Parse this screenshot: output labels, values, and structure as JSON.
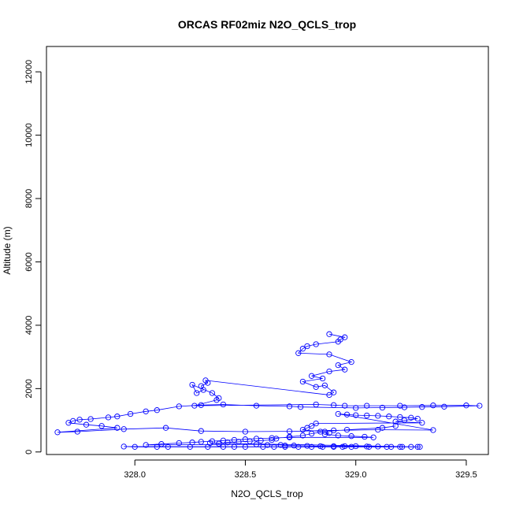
{
  "chart_data": {
    "type": "scatter",
    "title": "ORCAS RF02miz N2O_QCLS_trop",
    "xlabel": "N2O_QCLS_trop",
    "ylabel": "Altitude (m)",
    "xlim": [
      327.6,
      329.6
    ],
    "ylim": [
      -80,
      12800
    ],
    "xticks": [
      328.0,
      328.5,
      329.0,
      329.5
    ],
    "xtick_labels": [
      "328.0",
      "328.5",
      "329.0",
      "329.5"
    ],
    "yticks": [
      0,
      2000,
      4000,
      6000,
      8000,
      10000,
      12000
    ],
    "ytick_labels": [
      "0",
      "2000",
      "4000",
      "6000",
      "8000",
      "10000",
      "12000"
    ],
    "grid": false,
    "legend": "none",
    "colors": {
      "series": "#0000ff",
      "axes": "#000000"
    },
    "series": [
      {
        "mode": "lines+markers",
        "x": [
          328.88,
          328.95,
          328.93,
          328.92,
          328.82,
          328.78,
          328.76,
          328.74,
          328.88,
          328.98,
          328.92,
          328.95,
          328.88,
          328.8,
          328.85,
          328.76,
          328.82,
          328.86,
          328.9,
          328.88,
          328.32,
          328.33,
          328.3,
          328.31,
          328.28,
          328.26,
          328.35,
          328.38,
          328.37,
          328.27,
          328.82,
          328.9,
          328.95,
          329.05,
          329.2,
          329.35,
          329.5,
          329.56,
          329.4,
          329.3,
          329.22,
          329.12,
          329.0,
          328.75,
          328.7,
          328.55,
          328.4,
          328.3,
          328.2,
          328.1,
          328.05,
          327.98,
          327.92,
          327.88,
          327.8,
          327.75,
          327.72,
          327.7,
          327.78,
          327.85,
          327.92,
          327.65,
          327.74,
          327.95,
          328.14,
          328.3,
          328.5,
          328.7,
          328.9,
          329.1,
          329.35,
          328.92,
          328.96,
          329.0,
          329.05,
          329.1,
          329.15,
          329.2,
          329.25,
          329.28,
          329.22,
          329.18,
          329.3,
          328.82,
          328.8,
          328.78,
          328.76,
          328.84,
          328.88,
          328.86,
          328.92,
          328.98,
          329.04,
          329.08,
          328.7,
          328.62,
          328.55,
          328.5,
          328.45,
          328.4,
          328.35,
          328.3,
          328.26,
          328.2,
          328.12,
          328.05,
          328.55,
          328.6,
          328.66,
          328.68,
          328.72,
          328.78,
          328.84,
          328.9,
          328.95,
          329.0,
          329.05,
          329.1,
          329.16,
          329.2,
          329.25,
          329.29,
          327.95,
          328.0,
          328.1,
          328.15,
          328.25,
          328.33,
          328.4,
          328.45,
          328.5,
          328.58,
          328.63,
          328.68,
          328.74,
          328.8,
          328.85,
          328.9,
          328.94,
          328.98,
          329.06,
          329.14,
          329.21,
          329.28,
          328.34,
          328.38,
          328.42,
          328.47,
          328.52,
          328.57,
          328.62,
          328.64,
          328.7,
          328.76,
          328.8,
          328.86,
          328.96,
          329.12,
          329.18
        ],
        "y": [
          3720,
          3620,
          3550,
          3480,
          3400,
          3340,
          3260,
          3120,
          3080,
          2840,
          2740,
          2600,
          2540,
          2400,
          2320,
          2220,
          2050,
          2100,
          1880,
          1800,
          2260,
          2180,
          2080,
          1960,
          1860,
          2120,
          1860,
          1700,
          1640,
          1460,
          1500,
          1480,
          1460,
          1460,
          1460,
          1470,
          1470,
          1460,
          1430,
          1420,
          1410,
          1400,
          1390,
          1420,
          1440,
          1460,
          1500,
          1480,
          1440,
          1320,
          1280,
          1200,
          1120,
          1090,
          1040,
          1020,
          980,
          920,
          860,
          820,
          760,
          620,
          640,
          720,
          760,
          660,
          640,
          650,
          680,
          700,
          690,
          1200,
          1180,
          1160,
          1150,
          1140,
          1120,
          1100,
          1080,
          1050,
          1000,
          960,
          920,
          900,
          820,
          760,
          700,
          640,
          600,
          560,
          520,
          500,
          480,
          460,
          460,
          440,
          420,
          400,
          380,
          360,
          340,
          320,
          300,
          280,
          250,
          220,
          240,
          220,
          220,
          200,
          200,
          190,
          180,
          180,
          180,
          180,
          170,
          170,
          160,
          160,
          160,
          160,
          170,
          160,
          160,
          160,
          160,
          160,
          160,
          160,
          160,
          160,
          160,
          160,
          160,
          160,
          160,
          160,
          160,
          160,
          160,
          160,
          160,
          160,
          280,
          260,
          300,
          320,
          340,
          360,
          380,
          420,
          480,
          520,
          580,
          640,
          700,
          760,
          820
        ]
      }
    ]
  }
}
